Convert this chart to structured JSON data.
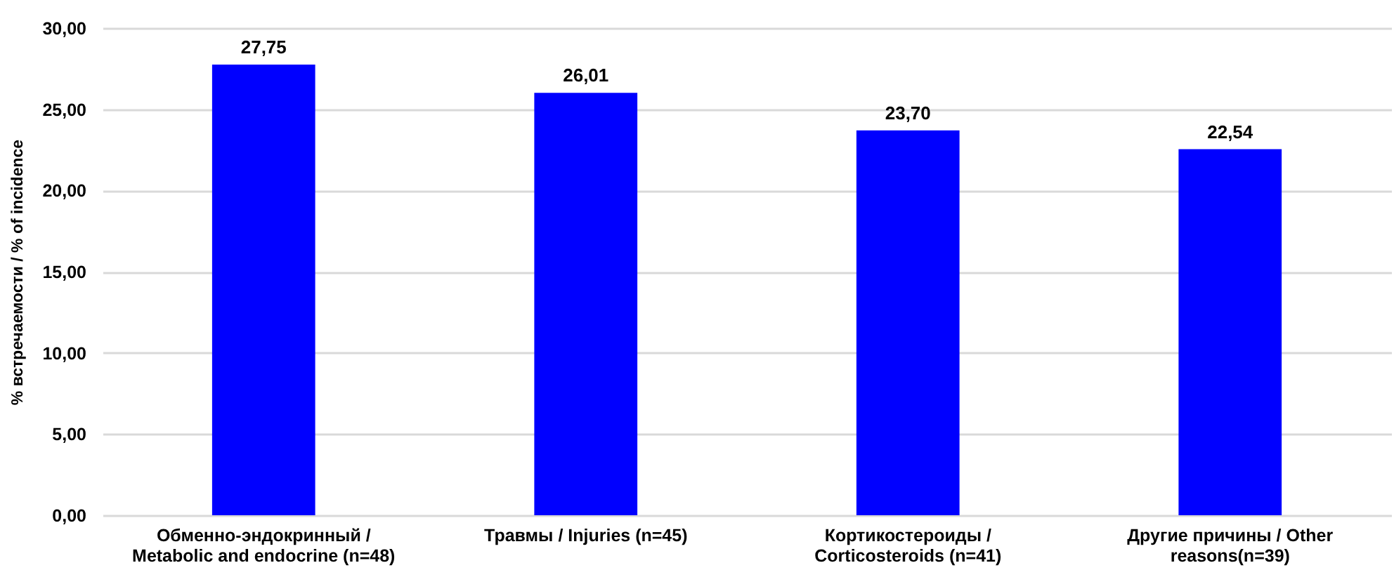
{
  "chart_data": {
    "type": "bar",
    "ylabel": "% встречаемости / % of incidence",
    "categories": [
      "Обменно-эндокринный / Metabolic and endocrine (n=48)",
      "Травмы / Injuries (n=45)",
      "Кортикостероиды / Corticosteroids (n=41)",
      "Другие причины / Other reasons(n=39)"
    ],
    "values": [
      27.75,
      26.01,
      23.7,
      22.54
    ],
    "value_labels": [
      "27,75",
      "26,01",
      "23,70",
      "22,54"
    ],
    "color": "#0000ff",
    "ylim": [
      0,
      30
    ],
    "yticks": [
      {
        "value": 0,
        "label": "0,00"
      },
      {
        "value": 5,
        "label": "5,00"
      },
      {
        "value": 10,
        "label": "10,00"
      },
      {
        "value": 15,
        "label": "15,00"
      },
      {
        "value": 20,
        "label": "20,00"
      },
      {
        "value": 25,
        "label": "25,00"
      },
      {
        "value": 30,
        "label": "30,00"
      }
    ],
    "grid": "y"
  }
}
